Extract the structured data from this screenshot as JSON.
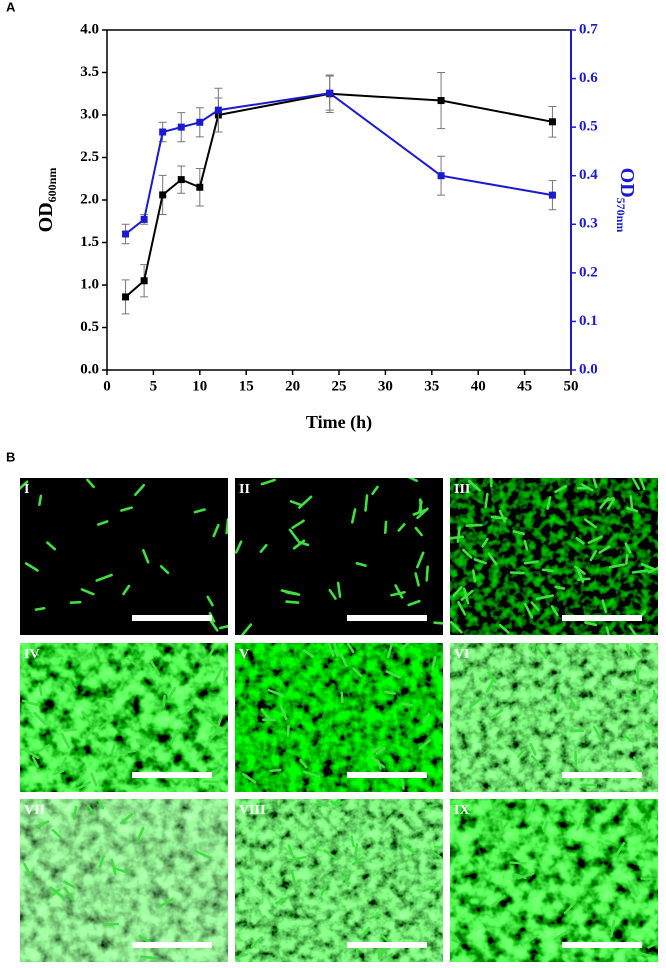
{
  "panel_labels": [
    "A",
    "B"
  ],
  "chart_data": {
    "type": "line",
    "x_label": "Time (h)",
    "y_label": "OD",
    "y_label_sub": "600nm",
    "y2_label": "OD",
    "y2_label_sub": "570nm",
    "x": [
      2,
      4,
      6,
      8,
      10,
      12,
      24,
      36,
      48
    ],
    "xlim": [
      0,
      50
    ],
    "xticks": [
      0,
      5,
      10,
      15,
      20,
      25,
      30,
      35,
      40,
      45,
      50
    ],
    "ylim": [
      0,
      4
    ],
    "yticks": [
      {
        "value": 0,
        "label": "0.0"
      },
      {
        "value": 0.5,
        "label": "0.5"
      },
      {
        "value": 1,
        "label": "1.0"
      },
      {
        "value": 1.5,
        "label": "1.5"
      },
      {
        "value": 2,
        "label": "2.0"
      },
      {
        "value": 2.5,
        "label": "2.5"
      },
      {
        "value": 3,
        "label": "3.0"
      },
      {
        "value": 3.5,
        "label": "3.5"
      },
      {
        "value": 4,
        "label": "4.0"
      }
    ],
    "y2lim": [
      0,
      0.7
    ],
    "y2ticks": [
      {
        "value": 0,
        "label": "0.0"
      },
      {
        "value": 0.1,
        "label": "0.1"
      },
      {
        "value": 0.2,
        "label": "0.2"
      },
      {
        "value": 0.3,
        "label": "0.3"
      },
      {
        "value": 0.4,
        "label": "0.4"
      },
      {
        "value": 0.5,
        "label": "0.5"
      },
      {
        "value": 0.6,
        "label": "0.6"
      },
      {
        "value": 0.7,
        "label": "0.7"
      }
    ],
    "y2_color": "#1a1ad0",
    "series": [
      {
        "color": "#000000",
        "values": [
          0.86,
          1.05,
          2.06,
          2.24,
          2.15,
          3.0,
          3.25,
          3.17,
          2.92
        ],
        "errors": [
          0.2,
          0.19,
          0.23,
          0.16,
          0.22,
          0.2,
          0.22,
          0.33,
          0.18
        ]
      },
      {
        "color": "#1a1ad0",
        "axis": "y2",
        "values": [
          0.28,
          0.31,
          0.49,
          0.5,
          0.51,
          0.535,
          0.57,
          0.4,
          0.36
        ],
        "errors": [
          0.02,
          0.01,
          0.02,
          0.03,
          0.03,
          0.045,
          0.035,
          0.04,
          0.03
        ]
      }
    ]
  },
  "micrographs": {
    "labels": [
      "I",
      "II",
      "III",
      "IV",
      "V",
      "VI",
      "VII",
      "VIII",
      "IX"
    ]
  }
}
